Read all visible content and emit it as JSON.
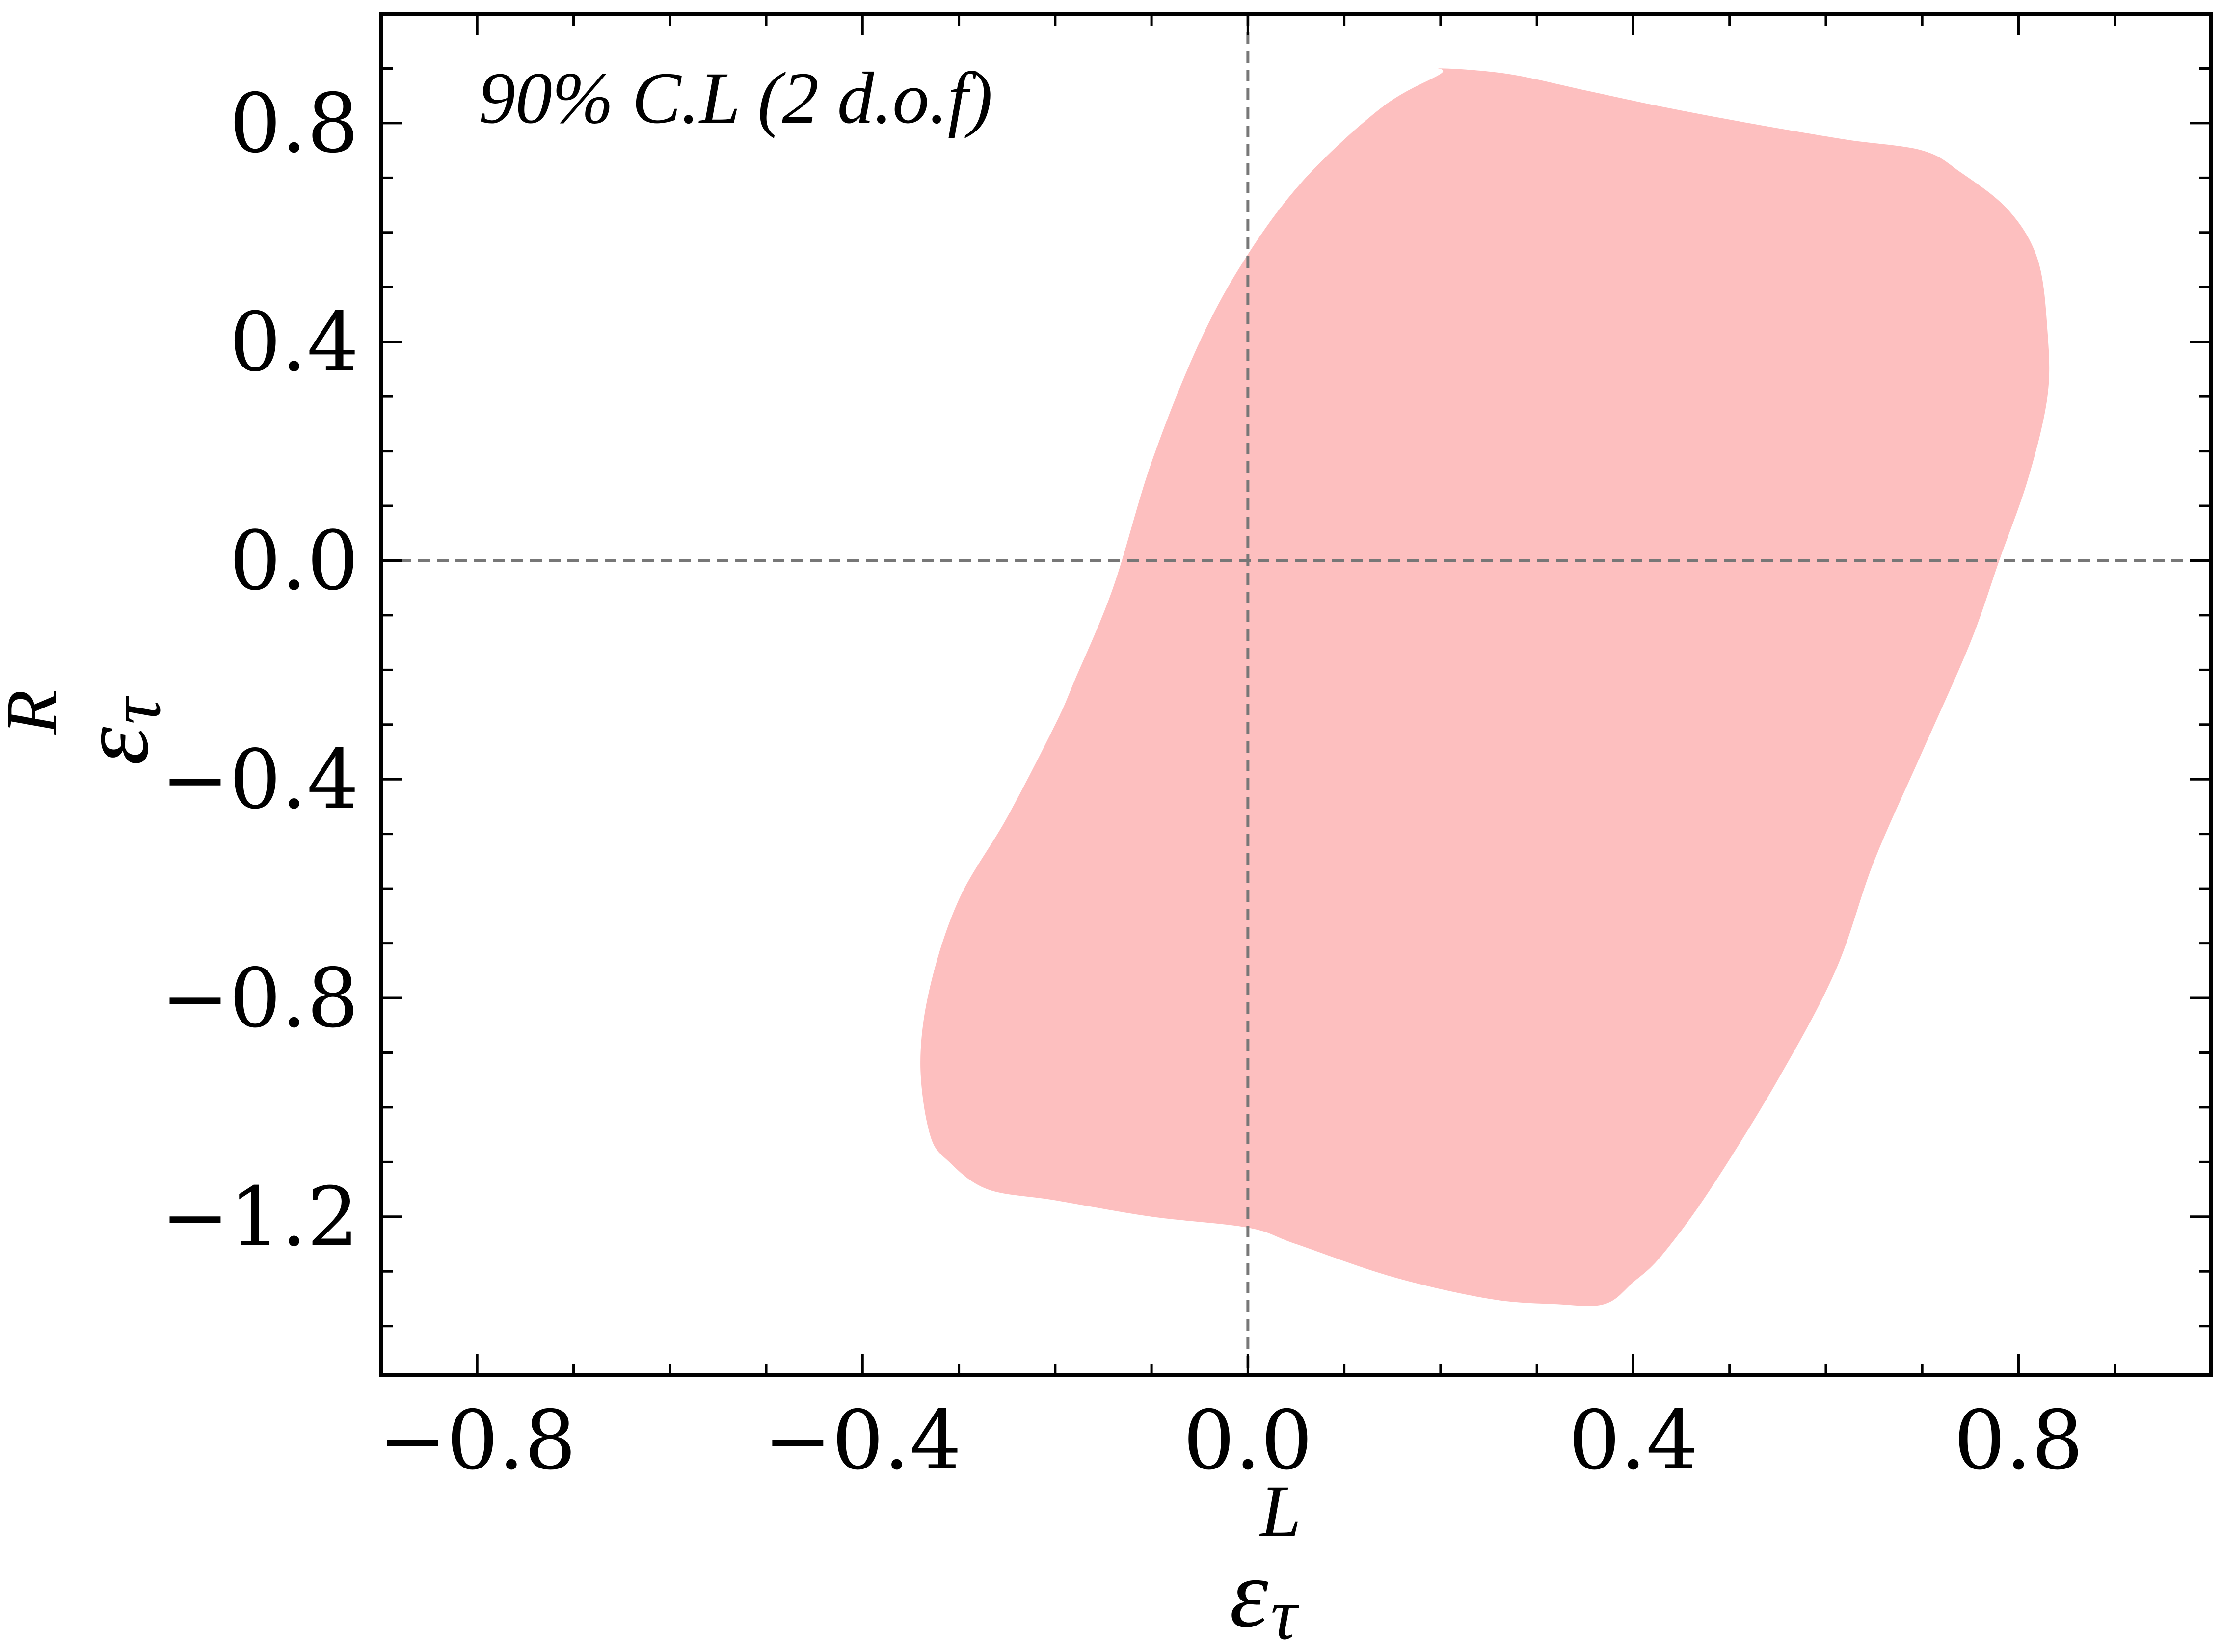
{
  "chart_data": {
    "type": "area",
    "annotation": "90% C.L (2 d.o.f)",
    "xlabel": {
      "base": "ε",
      "sub": "τ",
      "sup": "L"
    },
    "ylabel": {
      "base": "ε",
      "sub": "τ",
      "sup": "R"
    },
    "xlim": [
      -0.9,
      1.0
    ],
    "ylim": [
      -1.49,
      1.0
    ],
    "xticks": [
      -0.8,
      -0.4,
      0.0,
      0.4,
      0.8
    ],
    "xtick_labels": [
      "−0.8",
      "−0.4",
      "0.0",
      "0.4",
      "0.8"
    ],
    "yticks": [
      0.8,
      0.4,
      0.0,
      -0.4,
      -0.8,
      -1.2
    ],
    "ytick_labels": [
      "0.8",
      "0.4",
      "0.0",
      "−0.4",
      "−0.8",
      "−1.2"
    ],
    "x_minor_step": 0.1,
    "y_minor_step": 0.1,
    "reference_lines": {
      "x": 0.0,
      "y": 0.0,
      "style": "dashed",
      "color": "#777777"
    },
    "series": [
      {
        "fill_color": "#fdbfbf",
        "x": [
          0.2,
          0.27,
          0.35,
          0.43,
          0.52,
          0.62,
          0.7,
          0.74,
          0.79,
          0.82,
          0.83,
          0.83,
          0.81,
          0.78,
          0.75,
          0.7,
          0.65,
          0.61,
          0.55,
          0.48,
          0.43,
          0.4,
          0.37,
          0.32,
          0.25,
          0.15,
          0.05,
          0.0,
          -0.1,
          -0.2,
          -0.27,
          -0.31,
          -0.33,
          -0.34,
          -0.33,
          -0.3,
          -0.25,
          -0.2,
          -0.18,
          -0.14,
          -0.1,
          -0.05,
          0.0,
          0.06,
          0.14,
          0.2
        ],
        "y": [
          0.9,
          0.89,
          0.86,
          0.83,
          0.8,
          0.77,
          0.75,
          0.71,
          0.64,
          0.55,
          0.42,
          0.3,
          0.15,
          0.0,
          -0.15,
          -0.35,
          -0.55,
          -0.75,
          -0.95,
          -1.15,
          -1.27,
          -1.32,
          -1.36,
          -1.36,
          -1.35,
          -1.31,
          -1.25,
          -1.22,
          -1.2,
          -1.17,
          -1.15,
          -1.1,
          -1.05,
          -0.92,
          -0.78,
          -0.62,
          -0.47,
          -0.3,
          -0.22,
          -0.05,
          0.18,
          0.4,
          0.56,
          0.7,
          0.83,
          0.89
        ]
      }
    ]
  }
}
